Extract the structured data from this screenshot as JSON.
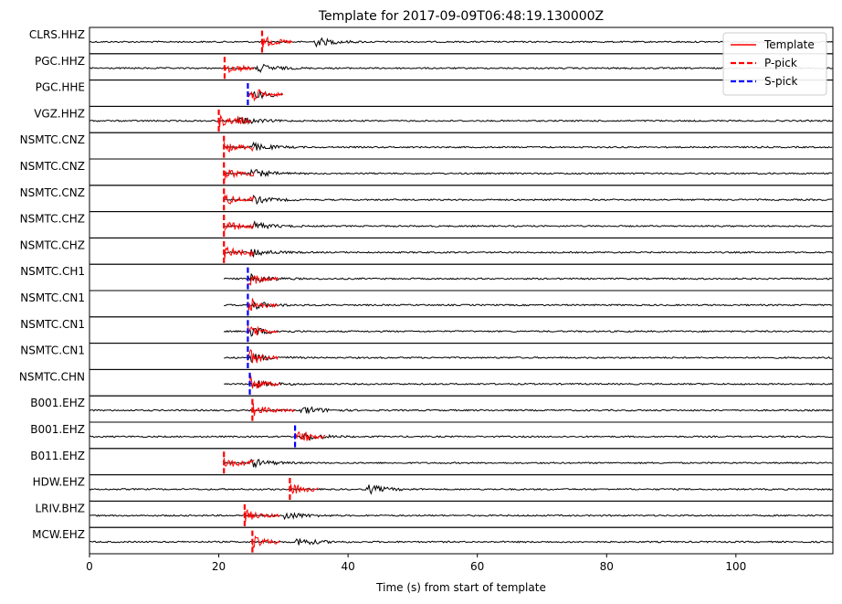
{
  "chart_data": {
    "type": "line",
    "title": "Template for 2017-09-09T06:48:19.130000Z",
    "xlabel": "Time (s) from start of template",
    "ylabel": "",
    "xlim": [
      0,
      115
    ],
    "x_ticks": [
      0,
      20,
      40,
      60,
      80,
      100
    ],
    "grid": false,
    "legend_position": "top-right",
    "legend": [
      {
        "label": "Template",
        "color": "#ff0000",
        "style": "solid"
      },
      {
        "label": "P-pick",
        "color": "#ff0000",
        "style": "dashed"
      },
      {
        "label": "S-pick",
        "color": "#0000ff",
        "style": "dashed"
      }
    ],
    "colors": {
      "continuous": "#000000",
      "template": "#ff0000",
      "p_pick": "#ff0000",
      "s_pick": "#0000ff"
    },
    "traces": [
      {
        "station": "CLRS.HHZ",
        "cont_start": 0,
        "cont_end": 115,
        "template_start": 26.7,
        "template_end": 31.5,
        "pick_type": "P",
        "pick_time": 26.7,
        "event_time": 35
      },
      {
        "station": "PGC.HHZ",
        "cont_start": 0,
        "cont_end": 115,
        "template_start": 20.9,
        "template_end": 25.5,
        "pick_type": "P",
        "pick_time": 20.9,
        "event_time": 26
      },
      {
        "station": "PGC.HHE",
        "cont_start": 24.5,
        "cont_end": 30,
        "template_start": 24.5,
        "template_end": 30,
        "pick_type": "S",
        "pick_time": 24.5,
        "event_time": 25.5
      },
      {
        "station": "VGZ.HHZ",
        "cont_start": 0,
        "cont_end": 115,
        "template_start": 20.0,
        "template_end": 25.0,
        "pick_type": "P",
        "pick_time": 20.0,
        "event_time": 23
      },
      {
        "station": "NSMTC.CNZ",
        "cont_start": 20.8,
        "cont_end": 115,
        "template_start": 20.8,
        "template_end": 25.5,
        "pick_type": "P",
        "pick_time": 20.8,
        "event_time": 25
      },
      {
        "station": "NSMTC.CNZ",
        "cont_start": 20.8,
        "cont_end": 115,
        "template_start": 20.8,
        "template_end": 25.5,
        "pick_type": "P",
        "pick_time": 20.8,
        "event_time": 25
      },
      {
        "station": "NSMTC.CNZ",
        "cont_start": 20.8,
        "cont_end": 115,
        "template_start": 20.8,
        "template_end": 25.5,
        "pick_type": "P",
        "pick_time": 20.8,
        "event_time": 25
      },
      {
        "station": "NSMTC.CHZ",
        "cont_start": 20.8,
        "cont_end": 115,
        "template_start": 20.8,
        "template_end": 25.5,
        "pick_type": "P",
        "pick_time": 20.8,
        "event_time": 25
      },
      {
        "station": "NSMTC.CHZ",
        "cont_start": 20.8,
        "cont_end": 115,
        "template_start": 20.8,
        "template_end": 25.5,
        "pick_type": "P",
        "pick_time": 20.8,
        "event_time": 25
      },
      {
        "station": "NSMTC.CH1",
        "cont_start": 20.8,
        "cont_end": 115,
        "template_start": 24.5,
        "template_end": 29.3,
        "pick_type": "S",
        "pick_time": 24.5,
        "event_time": 25
      },
      {
        "station": "NSMTC.CN1",
        "cont_start": 20.8,
        "cont_end": 115,
        "template_start": 24.5,
        "template_end": 29.3,
        "pick_type": "S",
        "pick_time": 24.5,
        "event_time": 25
      },
      {
        "station": "NSMTC.CN1",
        "cont_start": 20.8,
        "cont_end": 115,
        "template_start": 24.5,
        "template_end": 29.3,
        "pick_type": "S",
        "pick_time": 24.5,
        "event_time": 25
      },
      {
        "station": "NSMTC.CN1",
        "cont_start": 20.8,
        "cont_end": 115,
        "template_start": 24.5,
        "template_end": 29.3,
        "pick_type": "S",
        "pick_time": 24.5,
        "event_time": 25
      },
      {
        "station": "NSMTC.CHN",
        "cont_start": 20.8,
        "cont_end": 115,
        "template_start": 24.8,
        "template_end": 29.5,
        "pick_type": "S",
        "pick_time": 24.8,
        "event_time": 25
      },
      {
        "station": "B001.EHZ",
        "cont_start": 0,
        "cont_end": 115,
        "template_start": 25.2,
        "template_end": 31.8,
        "pick_type": "P",
        "pick_time": 25.2,
        "event_time": 33
      },
      {
        "station": "B001.EHZ",
        "cont_start": 0,
        "cont_end": 115,
        "template_start": 31.8,
        "template_end": 36.5,
        "pick_type": "S",
        "pick_time": 31.8,
        "event_time": 33
      },
      {
        "station": "B011.EHZ",
        "cont_start": 20.8,
        "cont_end": 115,
        "template_start": 20.8,
        "template_end": 25.5,
        "pick_type": "P",
        "pick_time": 20.8,
        "event_time": 25
      },
      {
        "station": "HDW.EHZ",
        "cont_start": 0,
        "cont_end": 115,
        "template_start": 31.0,
        "template_end": 35.5,
        "pick_type": "P",
        "pick_time": 31.0,
        "event_time": 43
      },
      {
        "station": "LRIV.BHZ",
        "cont_start": 0,
        "cont_end": 115,
        "template_start": 24.0,
        "template_end": 29.5,
        "pick_type": "P",
        "pick_time": 24.0,
        "event_time": 30
      },
      {
        "station": "MCW.EHZ",
        "cont_start": 0,
        "cont_end": 115,
        "template_start": 25.2,
        "template_end": 29.5,
        "pick_type": "P",
        "pick_time": 25.2,
        "event_time": 32
      }
    ]
  }
}
